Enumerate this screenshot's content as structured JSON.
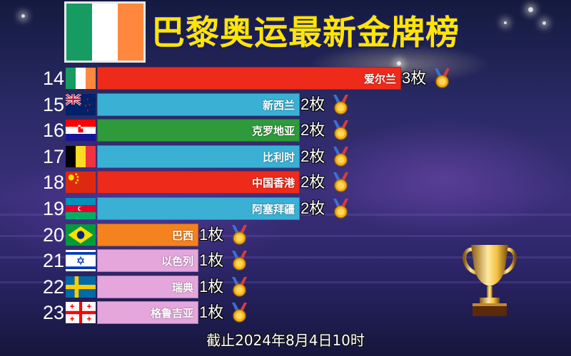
{
  "title": "巴黎奥运最新金牌榜",
  "footer": "截止2024年8月4日10时",
  "title_flag": "ireland",
  "colors": {
    "title_text": "#ffe600",
    "bar_palette": [
      "#ee2a1b",
      "#3ab1d4",
      "#2e9a3a",
      "#3ab1d4",
      "#ee2a1b",
      "#3ab1d4",
      "#f4821e",
      "#e5a6dc",
      "#e5a6dc",
      "#e5a6dc"
    ]
  },
  "chart_data": {
    "type": "bar",
    "orientation": "horizontal",
    "count_suffix": "枚",
    "ranks": [
      "14",
      "15",
      "16",
      "17",
      "18",
      "19",
      "20",
      "21",
      "22",
      "23"
    ],
    "categories": [
      "爱尔兰",
      "新西兰",
      "克罗地亚",
      "比利时",
      "中国香港",
      "阿塞拜疆",
      "巴西",
      "以色列",
      "瑞典",
      "格鲁吉亚"
    ],
    "values": [
      3,
      2,
      2,
      2,
      2,
      2,
      1,
      1,
      1,
      1
    ],
    "flags": [
      "ireland",
      "new-zealand",
      "croatia",
      "belgium",
      "hong-kong",
      "azerbaijan",
      "brazil",
      "israel",
      "sweden",
      "georgia"
    ],
    "xlim": [
      0,
      3
    ],
    "legend": "none",
    "grid": false
  }
}
